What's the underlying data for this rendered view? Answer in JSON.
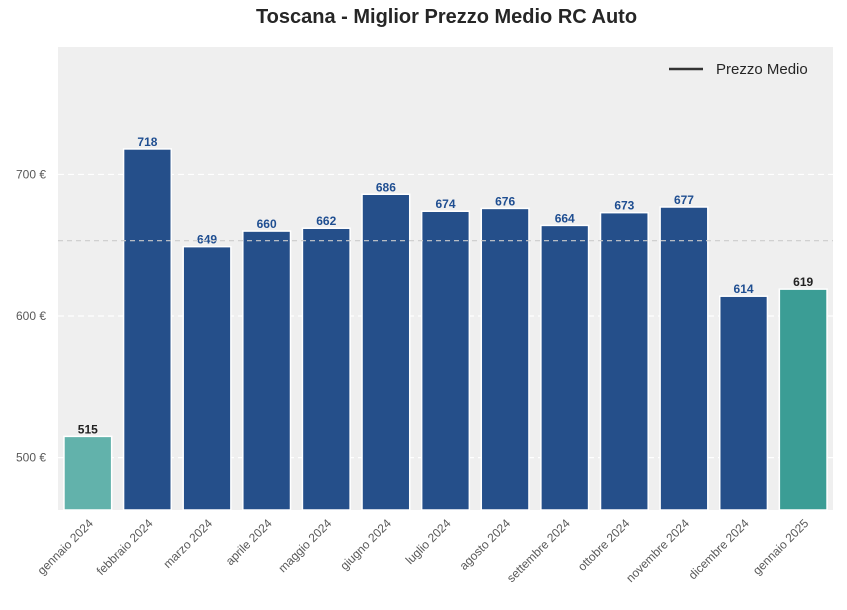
{
  "chart_data": {
    "type": "bar",
    "title": "Toscana - Miglior Prezzo Medio RC Auto",
    "xlabel": "",
    "ylabel": "",
    "ylim": [
      463,
      790
    ],
    "yticks": [
      500,
      600,
      700
    ],
    "ytick_labels": [
      "500 €",
      "600 €",
      "700 €"
    ],
    "categories": [
      "gennaio 2024",
      "febbraio 2024",
      "marzo 2024",
      "aprile 2024",
      "maggio 2024",
      "giugno 2024",
      "luglio 2024",
      "agosto 2024",
      "settembre 2024",
      "ottobre 2024",
      "novembre 2024",
      "dicembre 2024",
      "gennaio 2025"
    ],
    "values": [
      515,
      718,
      649,
      660,
      662,
      686,
      674,
      676,
      664,
      673,
      677,
      614,
      619
    ],
    "bar_colors": [
      "#62b2ab",
      "#254f8a",
      "#254f8a",
      "#254f8a",
      "#254f8a",
      "#254f8a",
      "#254f8a",
      "#254f8a",
      "#254f8a",
      "#254f8a",
      "#254f8a",
      "#254f8a",
      "#3b9d95"
    ],
    "label_colors": [
      "#222222",
      "#1f4e91",
      "#1f4e91",
      "#1f4e91",
      "#1f4e91",
      "#1f4e91",
      "#1f4e91",
      "#1f4e91",
      "#1f4e91",
      "#1f4e91",
      "#1f4e91",
      "#1f4e91",
      "#222222"
    ],
    "average_line": {
      "label": "Prezzo Medio",
      "value": 653.2,
      "color": "#cccccc"
    },
    "legend": {
      "placement": "top-right",
      "entries": [
        {
          "label": "Prezzo Medio",
          "color": "#333333"
        }
      ]
    },
    "grid": true,
    "background": "#efefef"
  }
}
